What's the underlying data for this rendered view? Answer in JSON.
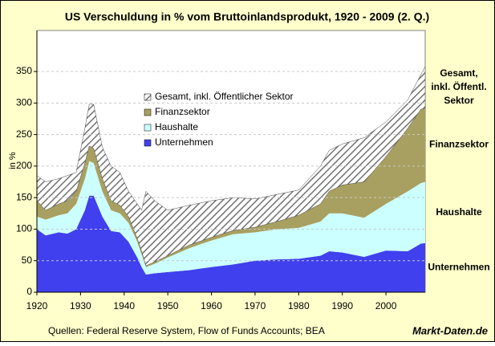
{
  "chart_data": {
    "type": "stacked-area",
    "title": "US Verschuldung in % vom Bruttoinlandsprodukt, 1920 - 2009 (2. Q.)",
    "y_label": "in %",
    "source": "Quellen: Federal Reserve System, Flow of Funds Accounts; BEA",
    "brand": "Markt-Daten.de",
    "x": [
      1920,
      1922,
      1925,
      1927,
      1929,
      1931,
      1932,
      1933,
      1935,
      1937,
      1939,
      1941,
      1943,
      1944,
      1945,
      1947,
      1950,
      1955,
      1960,
      1965,
      1970,
      1975,
      1980,
      1985,
      1987,
      1990,
      1995,
      2000,
      2005,
      2008,
      2009
    ],
    "series": [
      {
        "name": "Unternehmen",
        "color": "#4040ee",
        "values": [
          100,
          90,
          95,
          93,
          100,
          130,
          153,
          153,
          120,
          97,
          95,
          80,
          55,
          40,
          28,
          30,
          32,
          35,
          40,
          44,
          50,
          52,
          53,
          58,
          65,
          63,
          56,
          66,
          65,
          77,
          78
        ]
      },
      {
        "name": "Haushalte",
        "color": "#ccffff",
        "values": [
          20,
          25,
          27,
          32,
          40,
          50,
          55,
          52,
          40,
          33,
          30,
          30,
          25,
          20,
          12,
          15,
          23,
          35,
          42,
          48,
          45,
          48,
          49,
          54,
          60,
          62,
          62,
          74,
          95,
          96,
          97
        ]
      },
      {
        "name": "Finanzsektor",
        "color": "#a8a060",
        "values": [
          25,
          15,
          18,
          20,
          20,
          25,
          24,
          23,
          20,
          15,
          13,
          10,
          5,
          5,
          2,
          3,
          3,
          5,
          5,
          6,
          8,
          12,
          20,
          28,
          35,
          45,
          57,
          75,
          100,
          117,
          117
        ]
      },
      {
        "name": "Gesamt,  inkl. Öffentlicher Sektor",
        "color": "#707070",
        "values": [
          40,
          45,
          40,
          40,
          30,
          55,
          66,
          70,
          50,
          55,
          52,
          40,
          55,
          65,
          118,
          97,
          72,
          63,
          58,
          52,
          45,
          43,
          40,
          60,
          65,
          65,
          70,
          55,
          45,
          55,
          66
        ]
      }
    ],
    "right_labels": [
      [
        "Gesamt,",
        "inkl. Öffentl.",
        "Sektor"
      ],
      [
        "Finanzsektor"
      ],
      [
        "Haushalte"
      ],
      [
        "Unternehmen"
      ]
    ],
    "xlim": [
      1920,
      2009
    ],
    "xticks": [
      1920,
      1930,
      1940,
      1950,
      1960,
      1970,
      1980,
      1990,
      2000
    ],
    "ylim": [
      0,
      415
    ],
    "yticks": [
      0,
      50,
      100,
      150,
      200,
      250,
      300,
      350
    ],
    "grid": true
  }
}
